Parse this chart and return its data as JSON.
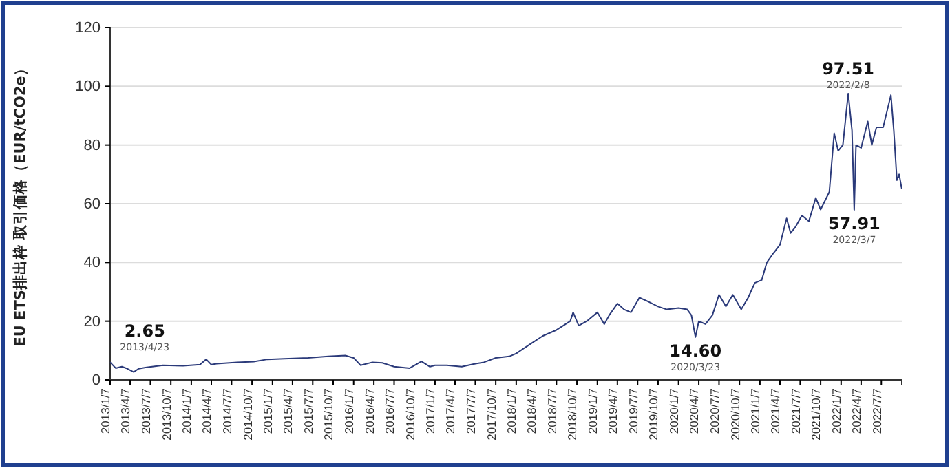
{
  "chart_data": {
    "type": "line",
    "ylabel": "EU ETS排出枠 取引価格（EUR/tCO2e）",
    "xlim": [
      "2013-01-07",
      "2022-10-07"
    ],
    "xticks": [
      {
        "value": "2013-01-07",
        "label": "2013/1/7"
      },
      {
        "value": "2013-04-07",
        "label": "2013/4/7"
      },
      {
        "value": "2013-07-07",
        "label": "2013/7/7"
      },
      {
        "value": "2013-10-07",
        "label": "2013/10/7"
      },
      {
        "value": "2014-01-07",
        "label": "2014/1/7"
      },
      {
        "value": "2014-04-07",
        "label": "2014/4/7"
      },
      {
        "value": "2014-07-07",
        "label": "2014/7/7"
      },
      {
        "value": "2014-10-07",
        "label": "2014/10/7"
      },
      {
        "value": "2015-01-07",
        "label": "2015/1/7"
      },
      {
        "value": "2015-04-07",
        "label": "2015/4/7"
      },
      {
        "value": "2015-07-07",
        "label": "2015/7/7"
      },
      {
        "value": "2015-10-07",
        "label": "2015/10/7"
      },
      {
        "value": "2016-01-07",
        "label": "2016/1/7"
      },
      {
        "value": "2016-04-07",
        "label": "2016/4/7"
      },
      {
        "value": "2016-07-07",
        "label": "2016/7/7"
      },
      {
        "value": "2016-10-07",
        "label": "2016/10/7"
      },
      {
        "value": "2017-01-07",
        "label": "2017/1/7"
      },
      {
        "value": "2017-04-07",
        "label": "2017/4/7"
      },
      {
        "value": "2017-07-07",
        "label": "2017/7/7"
      },
      {
        "value": "2017-10-07",
        "label": "2017/10/7"
      },
      {
        "value": "2018-01-07",
        "label": "2018/1/7"
      },
      {
        "value": "2018-04-07",
        "label": "2018/4/7"
      },
      {
        "value": "2018-07-07",
        "label": "2018/7/7"
      },
      {
        "value": "2018-10-07",
        "label": "2018/10/7"
      },
      {
        "value": "2019-01-07",
        "label": "2019/1/7"
      },
      {
        "value": "2019-04-07",
        "label": "2019/4/7"
      },
      {
        "value": "2019-07-07",
        "label": "2019/7/7"
      },
      {
        "value": "2019-10-07",
        "label": "2019/10/7"
      },
      {
        "value": "2020-01-07",
        "label": "2020/1/7"
      },
      {
        "value": "2020-04-07",
        "label": "2020/4/7"
      },
      {
        "value": "2020-07-07",
        "label": "2020/7/7"
      },
      {
        "value": "2020-10-07",
        "label": "2020/10/7"
      },
      {
        "value": "2021-01-07",
        "label": "2021/1/7"
      },
      {
        "value": "2021-04-07",
        "label": "2021/4/7"
      },
      {
        "value": "2021-07-07",
        "label": "2021/7/7"
      },
      {
        "value": "2021-10-07",
        "label": "2021/10/7"
      },
      {
        "value": "2022-01-07",
        "label": "2022/1/7"
      },
      {
        "value": "2022-04-07",
        "label": "2022/4/7"
      },
      {
        "value": "2022-07-07",
        "label": "2022/7/7"
      }
    ],
    "ylim": [
      0,
      120
    ],
    "yticks": [
      0,
      20,
      40,
      60,
      80,
      100,
      120
    ],
    "grid": "y",
    "marker": "none",
    "line_style": "solid",
    "x": [
      "2013-01-07",
      "2013-02-01",
      "2013-03-01",
      "2013-03-20",
      "2013-04-23",
      "2013-05-15",
      "2013-06-15",
      "2013-09-01",
      "2013-12-01",
      "2014-02-15",
      "2014-03-15",
      "2014-04-07",
      "2014-05-01",
      "2014-08-01",
      "2014-10-15",
      "2014-12-15",
      "2015-03-01",
      "2015-06-15",
      "2015-09-15",
      "2015-12-01",
      "2016-01-07",
      "2016-02-07",
      "2016-04-01",
      "2016-05-15",
      "2016-07-07",
      "2016-09-15",
      "2016-11-07",
      "2016-12-15",
      "2017-01-07",
      "2017-03-01",
      "2017-05-07",
      "2017-07-07",
      "2017-08-15",
      "2017-10-07",
      "2017-12-07",
      "2018-01-07",
      "2018-03-07",
      "2018-05-07",
      "2018-07-07",
      "2018-09-07",
      "2018-09-20",
      "2018-10-15",
      "2018-11-20",
      "2019-01-07",
      "2019-02-07",
      "2019-03-01",
      "2019-04-07",
      "2019-05-07",
      "2019-06-07",
      "2019-07-15",
      "2019-08-15",
      "2019-10-07",
      "2019-11-15",
      "2020-01-07",
      "2020-02-15",
      "2020-03-05",
      "2020-03-23",
      "2020-04-07",
      "2020-05-07",
      "2020-06-07",
      "2020-07-07",
      "2020-08-07",
      "2020-09-07",
      "2020-10-15",
      "2020-11-15",
      "2020-12-15",
      "2021-01-15",
      "2021-02-07",
      "2021-03-07",
      "2021-04-07",
      "2021-05-07",
      "2021-05-25",
      "2021-06-15",
      "2021-07-15",
      "2021-08-15",
      "2021-09-15",
      "2021-10-07",
      "2021-11-15",
      "2021-12-07",
      "2021-12-25",
      "2022-01-15",
      "2022-02-08",
      "2022-02-25",
      "2022-03-07",
      "2022-03-15",
      "2022-04-07",
      "2022-05-07",
      "2022-05-25",
      "2022-06-15",
      "2022-07-15",
      "2022-08-19",
      "2022-09-01",
      "2022-09-15",
      "2022-09-25",
      "2022-10-07"
    ],
    "series": [
      {
        "color": "#2b3a7a",
        "values": [
          6,
          4,
          4.5,
          4,
          2.65,
          3.8,
          4.2,
          5,
          4.8,
          5.2,
          7,
          5.2,
          5.5,
          6,
          6.2,
          7,
          7.2,
          7.5,
          8,
          8.3,
          7.5,
          5,
          6,
          5.8,
          4.5,
          4,
          6.3,
          4.5,
          5,
          5,
          4.5,
          5.5,
          6,
          7.5,
          8,
          9,
          12,
          15,
          17,
          20,
          23,
          18.5,
          20,
          23,
          19,
          22,
          26,
          24,
          23,
          28,
          27,
          25,
          24,
          24.5,
          24,
          22,
          14.6,
          20,
          19,
          22,
          29,
          25,
          29,
          24,
          28,
          33,
          34,
          40,
          43,
          46,
          55,
          50,
          52,
          56,
          54,
          62,
          58,
          64,
          84,
          78,
          80,
          97.51,
          85,
          57.91,
          80,
          79,
          88,
          80,
          86,
          86,
          97,
          85,
          68,
          70,
          65
        ]
      }
    ],
    "annotations": [
      {
        "text": "2.65",
        "x": "2013-04-23",
        "y": 2.65
      },
      "2013/4/23",
      {
        "text": "14.60",
        "x": "2020-03-23",
        "y": 14.6
      },
      "2020/3/23",
      {
        "text": "97.51",
        "x": "2022-02-08",
        "y": 97.51
      },
      "2022/2/8",
      {
        "text": "57.91",
        "x": "2022-03-07",
        "y": 57.91
      },
      "2022/3/7"
    ]
  }
}
